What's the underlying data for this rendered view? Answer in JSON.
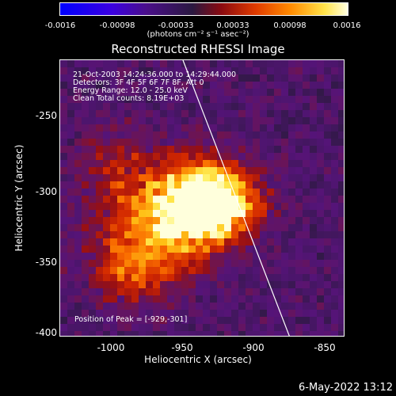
{
  "colorbar": {
    "ticks": [
      "-0.0016",
      "-0.00098",
      "-0.00033",
      "0.00033",
      "0.00098",
      "0.0016"
    ],
    "units": "(photons cm⁻² s⁻¹ asec⁻²)"
  },
  "title": "Reconstructed RHESSI Image",
  "info": {
    "time_range": "21-Oct-2003 14:24:36.000 to 14:29:44.000",
    "detectors": "Detectors: 3F 4F 5F 6F 7F 8F, Att 0",
    "energy": "Energy Range: 12.0 - 25.0 keV",
    "method": "Clean    Total counts: 8.19E+03",
    "peak": "Position of Peak = [-929,-301]"
  },
  "axes": {
    "xlabel": "Heliocentric X (arcsec)",
    "ylabel": "Heliocentric Y (arcsec)",
    "xticks": [
      "-1000",
      "-950",
      "-900",
      "-850"
    ],
    "yticks": [
      "-250",
      "-300",
      "-350",
      "-400"
    ]
  },
  "timestamp": "6-May-2022 13:12"
}
